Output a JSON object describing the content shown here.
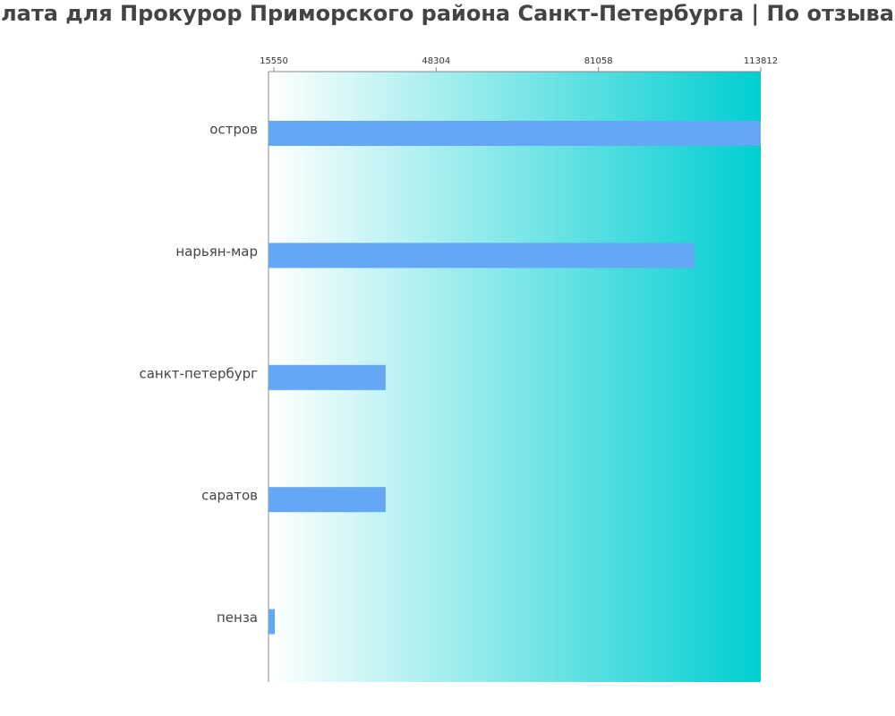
{
  "chart_data": {
    "type": "bar",
    "orientation": "horizontal",
    "title": "лата для Прокурор Приморского района Санкт-Петербурга | По отзыва",
    "categories": [
      "остров",
      "нарьян-мар",
      "санкт-петербург",
      "саратов",
      "пенза"
    ],
    "values": [
      113812,
      100458,
      38107,
      38107,
      15730
    ],
    "color": "#63a7f5",
    "background_gradient": [
      "#ffffff",
      "#00ced1"
    ],
    "xlim": [
      14467,
      113812
    ],
    "xticks": [
      15550,
      48304,
      81058,
      113812
    ]
  }
}
